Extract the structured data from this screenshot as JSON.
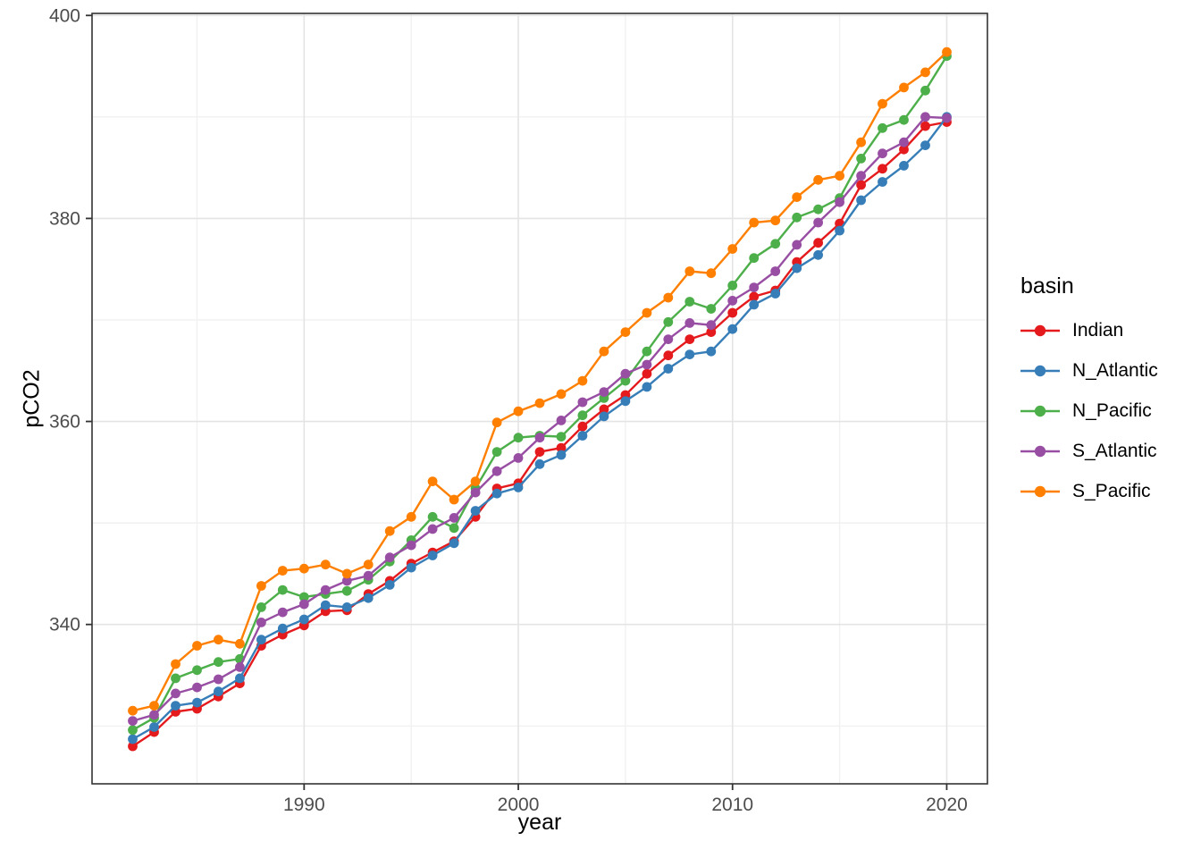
{
  "chart_data": {
    "type": "line",
    "title": "",
    "xlabel": "year",
    "ylabel": "pCO2",
    "legend_title": "basin",
    "legend_position": "right",
    "grid": true,
    "panel_border": true,
    "marker": "circle",
    "xlim": [
      1980.1,
      2021.9
    ],
    "ylim": [
      324.3,
      400.2
    ],
    "x_ticks": [
      1990,
      2000,
      2010,
      2020
    ],
    "x_minor_gridlines": [
      1985,
      1995,
      2005,
      2015
    ],
    "y_ticks": [
      340,
      360,
      380,
      400
    ],
    "y_minor_gridlines": [
      330,
      350,
      370,
      390
    ],
    "x": [
      1982,
      1983,
      1984,
      1985,
      1986,
      1987,
      1988,
      1989,
      1990,
      1991,
      1992,
      1993,
      1994,
      1995,
      1996,
      1997,
      1998,
      1999,
      2000,
      2001,
      2002,
      2003,
      2004,
      2005,
      2006,
      2007,
      2008,
      2009,
      2010,
      2011,
      2012,
      2013,
      2014,
      2015,
      2016,
      2017,
      2018,
      2019,
      2020
    ],
    "series": [
      {
        "name": "Indian",
        "color": "#E41A1C",
        "values": [
          328.0,
          329.4,
          331.4,
          331.7,
          332.9,
          334.2,
          337.9,
          339.0,
          339.9,
          341.3,
          341.4,
          343.0,
          344.3,
          346.0,
          347.1,
          348.2,
          350.6,
          353.4,
          353.9,
          357.0,
          357.4,
          359.5,
          361.2,
          362.6,
          364.7,
          366.5,
          368.1,
          368.8,
          370.7,
          372.3,
          372.9,
          375.7,
          377.6,
          379.5,
          383.3,
          384.9,
          386.8,
          389.1,
          389.5
        ]
      },
      {
        "name": "N_Atlantic",
        "color": "#377EB8",
        "values": [
          328.7,
          329.9,
          332.0,
          332.3,
          333.4,
          334.7,
          338.5,
          339.6,
          340.5,
          341.9,
          341.7,
          342.6,
          343.9,
          345.6,
          346.8,
          348.0,
          351.2,
          352.9,
          353.5,
          355.8,
          356.7,
          358.6,
          360.5,
          362.0,
          363.4,
          365.2,
          366.6,
          366.9,
          369.1,
          371.5,
          372.6,
          375.1,
          376.4,
          378.8,
          381.8,
          383.6,
          385.2,
          387.2,
          390.0
        ]
      },
      {
        "name": "N_Pacific",
        "color": "#4DAF4A",
        "values": [
          329.6,
          330.8,
          334.7,
          335.5,
          336.3,
          336.6,
          341.7,
          343.4,
          342.7,
          343.0,
          343.3,
          344.4,
          346.2,
          348.3,
          350.6,
          349.5,
          353.4,
          357.0,
          358.4,
          358.6,
          358.5,
          360.6,
          362.3,
          364.0,
          366.9,
          369.8,
          371.8,
          371.1,
          373.4,
          376.1,
          377.5,
          380.1,
          380.9,
          382.0,
          385.9,
          388.9,
          389.7,
          392.6,
          396.0
        ]
      },
      {
        "name": "S_Atlantic",
        "color": "#984EA3",
        "values": [
          330.5,
          331.1,
          333.2,
          333.8,
          334.6,
          335.8,
          340.2,
          341.2,
          342.0,
          343.4,
          344.3,
          344.8,
          346.6,
          347.8,
          349.4,
          350.5,
          353.0,
          355.1,
          356.4,
          358.4,
          360.1,
          361.9,
          362.9,
          364.7,
          365.6,
          368.1,
          369.7,
          369.5,
          371.9,
          373.2,
          374.8,
          377.4,
          379.6,
          381.6,
          384.2,
          386.4,
          387.5,
          390.0,
          389.9
        ]
      },
      {
        "name": "S_Pacific",
        "color": "#FF7F00",
        "values": [
          331.5,
          332.0,
          336.1,
          337.9,
          338.5,
          338.1,
          343.8,
          345.3,
          345.5,
          345.9,
          345.0,
          345.9,
          349.2,
          350.6,
          354.1,
          352.3,
          354.1,
          359.9,
          361.0,
          361.8,
          362.7,
          364.0,
          366.9,
          368.8,
          370.7,
          372.2,
          374.8,
          374.6,
          377.0,
          379.6,
          379.8,
          382.1,
          383.8,
          384.2,
          387.5,
          391.3,
          392.9,
          394.4,
          396.4
        ]
      }
    ],
    "style": {
      "major_grid_color": "#e4e4e4",
      "minor_grid_color": "#f1f1f1",
      "panel_border_color": "#333333",
      "tick_color": "#333333",
      "tick_label_color": "#4d4d4d"
    }
  }
}
